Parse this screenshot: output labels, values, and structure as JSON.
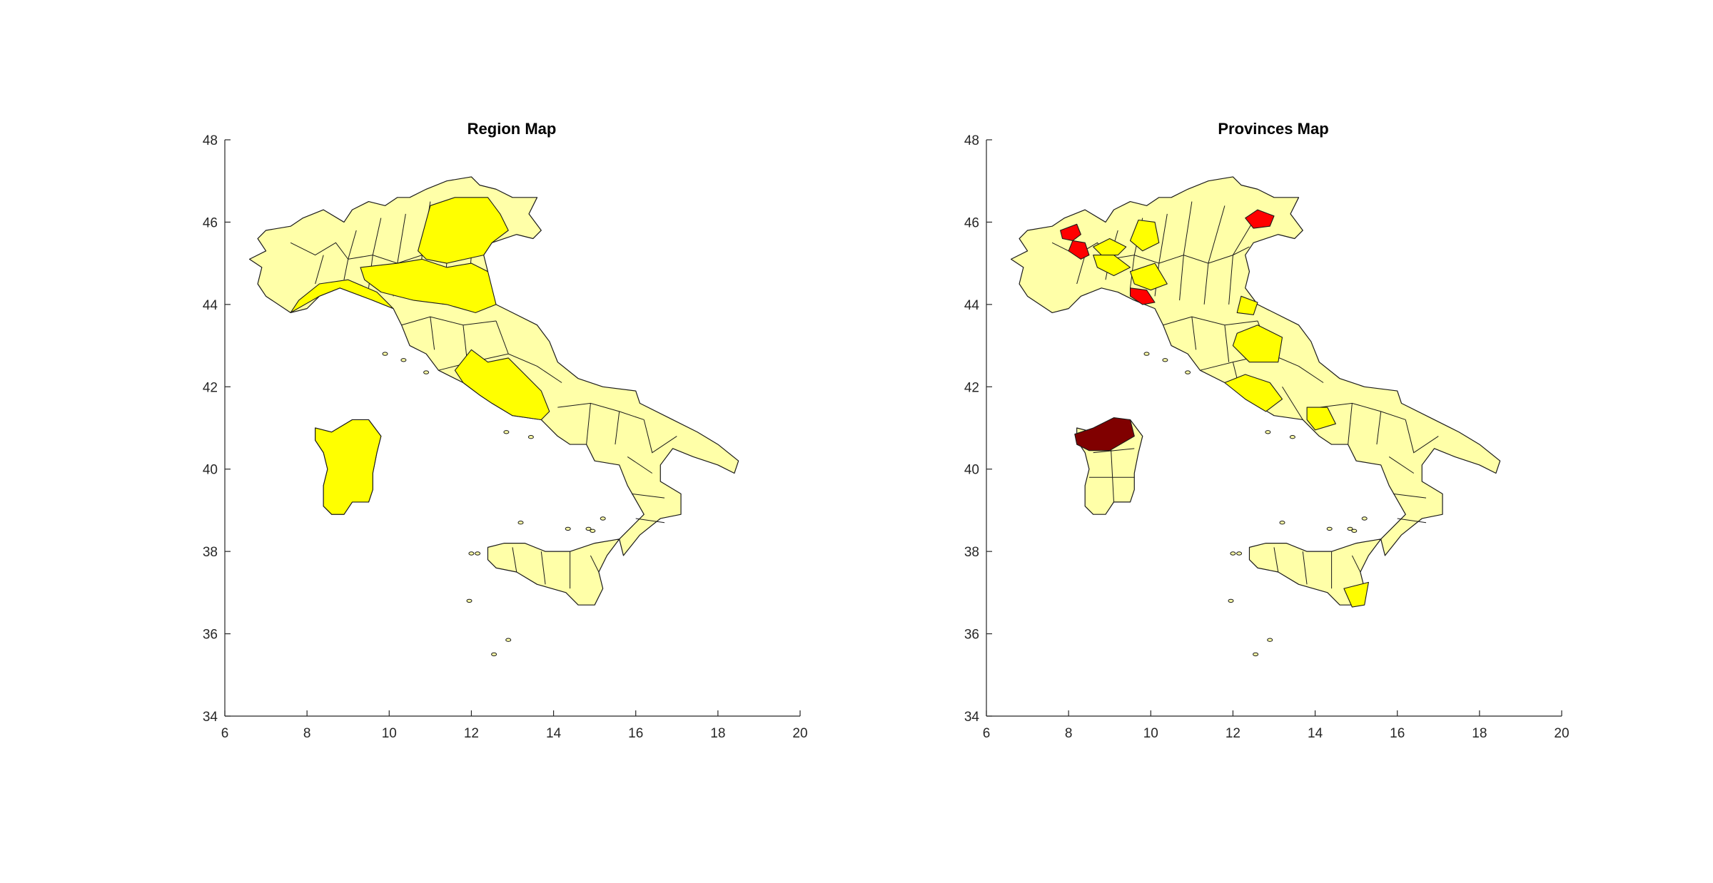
{
  "colors": {
    "pale": "#ffffa8",
    "yellow": "#ffff00",
    "red": "#ff0000",
    "darkred": "#800000",
    "border": "#1a1a1a",
    "axis": "#262626"
  },
  "chart_data": [
    {
      "type": "choropleth-map",
      "title": "Region Map",
      "xlim": [
        6,
        20
      ],
      "ylim": [
        34,
        48
      ],
      "xticks": [
        "6",
        "8",
        "10",
        "12",
        "14",
        "16",
        "18",
        "20"
      ],
      "yticks": [
        "34",
        "36",
        "38",
        "40",
        "42",
        "44",
        "46",
        "48"
      ],
      "highlighted_regions": [
        {
          "area": "Liguria",
          "fill": "yellow"
        },
        {
          "area": "Emilia-Romagna",
          "fill": "yellow"
        },
        {
          "area": "Veneto",
          "fill": "yellow"
        },
        {
          "area": "Lazio",
          "fill": "yellow"
        },
        {
          "area": "Sardegna",
          "fill": "yellow"
        }
      ]
    },
    {
      "type": "choropleth-map",
      "title": "Provinces Map",
      "xlim": [
        6,
        20
      ],
      "ylim": [
        34,
        48
      ],
      "xticks": [
        "6",
        "8",
        "10",
        "12",
        "14",
        "16",
        "18",
        "20"
      ],
      "yticks": [
        "34",
        "36",
        "38",
        "40",
        "42",
        "44",
        "46",
        "48"
      ],
      "highlighted_regions": [
        {
          "area": "Biella",
          "fill": "red"
        },
        {
          "area": "Vercelli",
          "fill": "red"
        },
        {
          "area": "La Spezia",
          "fill": "red"
        },
        {
          "area": "Pordenone",
          "fill": "red"
        },
        {
          "area": "Sassari",
          "fill": "darkred"
        },
        {
          "area": "Bergamo",
          "fill": "yellow"
        },
        {
          "area": "Milano",
          "fill": "yellow"
        },
        {
          "area": "Pavia",
          "fill": "yellow"
        },
        {
          "area": "Parma",
          "fill": "yellow"
        },
        {
          "area": "Rimini",
          "fill": "yellow"
        },
        {
          "area": "Perugia",
          "fill": "yellow"
        },
        {
          "area": "Roma",
          "fill": "yellow"
        },
        {
          "area": "Caserta",
          "fill": "yellow"
        },
        {
          "area": "Siracusa",
          "fill": "yellow"
        }
      ]
    }
  ]
}
